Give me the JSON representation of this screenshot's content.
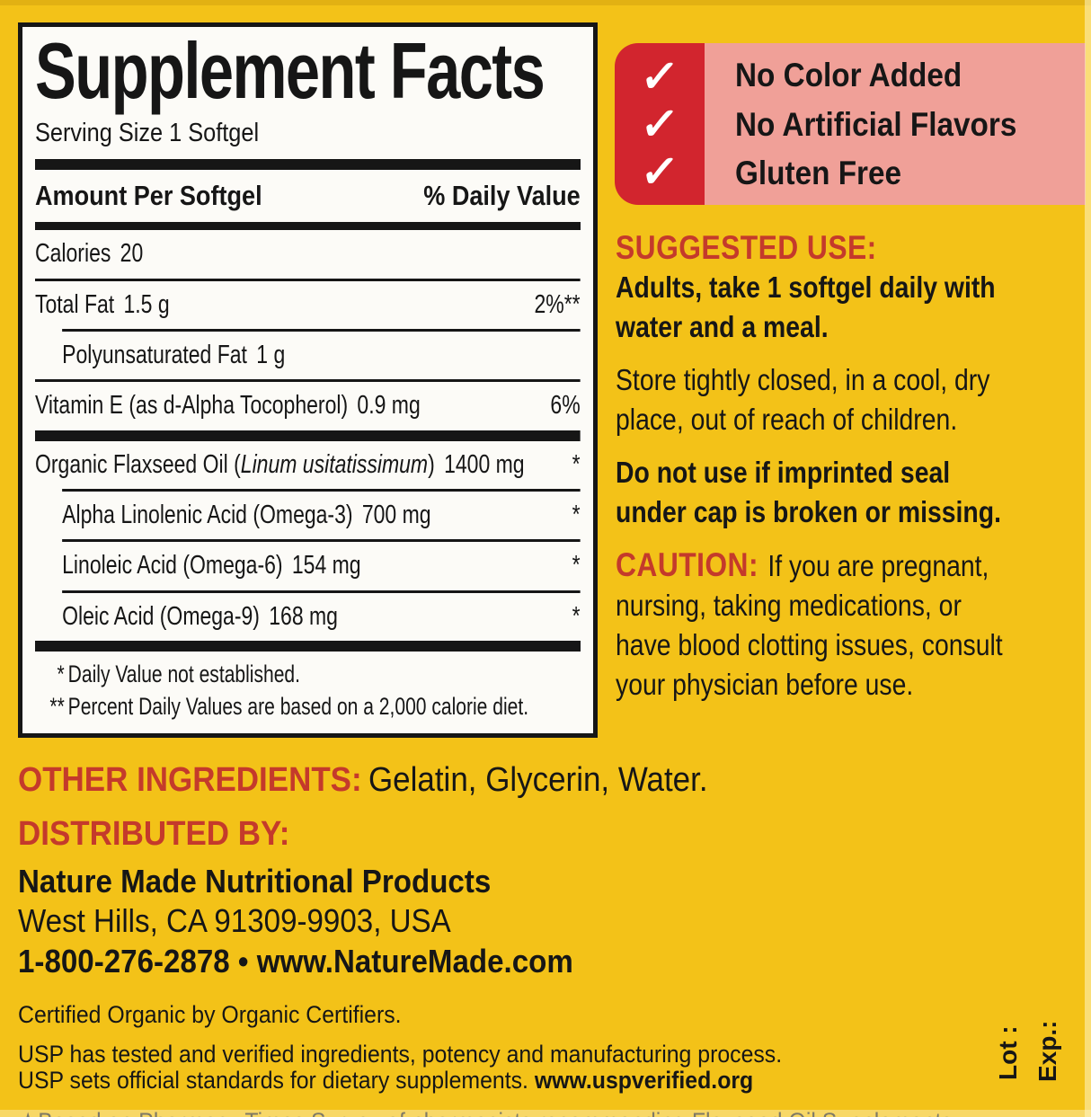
{
  "colors": {
    "background": "#F3C218",
    "panel_bg": "#FCFBF7",
    "ink": "#161616",
    "accent_red": "#C43A2B",
    "badge_red": "#D2252E",
    "badge_pink": "#F0A098",
    "check_white": "#FFFFFF"
  },
  "panel": {
    "title": "Supplement Facts",
    "serving_size": "Serving Size 1 Softgel",
    "columns": {
      "amount": "Amount Per Softgel",
      "daily_value": "% Daily Value"
    },
    "rows": [
      {
        "label": "Calories",
        "amount": "20",
        "dv": "",
        "indent": false,
        "sep_above": "none"
      },
      {
        "label": "Total Fat",
        "amount": "1.5 g",
        "dv": "2%**",
        "indent": false,
        "sep_above": "thin"
      },
      {
        "label": "Polyunsaturated Fat",
        "amount": "1 g",
        "dv": "",
        "indent": true,
        "sep_above": "thin-indent"
      },
      {
        "label": "Vitamin E (as d-Alpha Tocopherol)",
        "amount": "0.9 mg",
        "dv": "6%",
        "indent": false,
        "sep_above": "thin"
      },
      {
        "label_pre": "Organic Flaxseed Oil (",
        "label_italic": "Linum usitatissimum",
        "label_post": ")",
        "amount": "1400 mg",
        "dv": "*",
        "indent": false,
        "sep_above": "thick"
      },
      {
        "label": "Alpha Linolenic Acid (Omega-3)",
        "amount": "700 mg",
        "dv": "*",
        "indent": true,
        "sep_above": "thin-indent"
      },
      {
        "label": "Linoleic Acid (Omega-6)",
        "amount": "154 mg",
        "dv": "*",
        "indent": true,
        "sep_above": "thin-indent"
      },
      {
        "label": "Oleic Acid (Omega-9)",
        "amount": "168 mg",
        "dv": "*",
        "indent": true,
        "sep_above": "thin-indent"
      }
    ],
    "footnotes": [
      {
        "mark": "*",
        "text": "Daily Value not established."
      },
      {
        "mark": "**",
        "text": "Percent Daily Values are based on a 2,000 calorie diet."
      }
    ]
  },
  "claims_badge": {
    "checkmark": "✓",
    "items": [
      "No Color Added",
      "No Artificial Flavors",
      "Gluten Free"
    ]
  },
  "usage": {
    "suggested_use_heading": "SUGGESTED USE:",
    "suggested_use_text": "Adults, take 1 softgel daily with\nwater and a meal.",
    "storage_text": "Store tightly closed, in a cool, dry\nplace, out of reach of children.",
    "seal_warning": "Do not use if imprinted seal\nunder cap is broken or missing.",
    "caution_heading": "CAUTION:",
    "caution_text": "If you are pregnant,\nnursing, taking medications, or\nhave blood clotting issues, consult\nyour physician before use."
  },
  "other_ingredients": {
    "label": "OTHER INGREDIENTS:",
    "value": "Gelatin, Glycerin, Water."
  },
  "distributor": {
    "label": "DISTRIBUTED BY:",
    "name": "Nature Made Nutritional Products",
    "address": "West Hills, CA 91309-9903, USA",
    "contact": "1-800-276-2878 • www.NatureMade.com"
  },
  "fine_print": {
    "certified": "Certified Organic by Organic Certifiers.",
    "usp_line1": "USP has tested and verified ingredients, potency and manufacturing process.",
    "usp_line2": "USP sets official standards for dietary supplements. ",
    "usp_url": "www.uspverified.org",
    "survey": "★Based on Pharmacy Times Survey of pharmacists recommending Flaxseed Oil Supplements."
  },
  "lot_exp": {
    "lot": "Lot :",
    "exp": "Exp.:"
  }
}
